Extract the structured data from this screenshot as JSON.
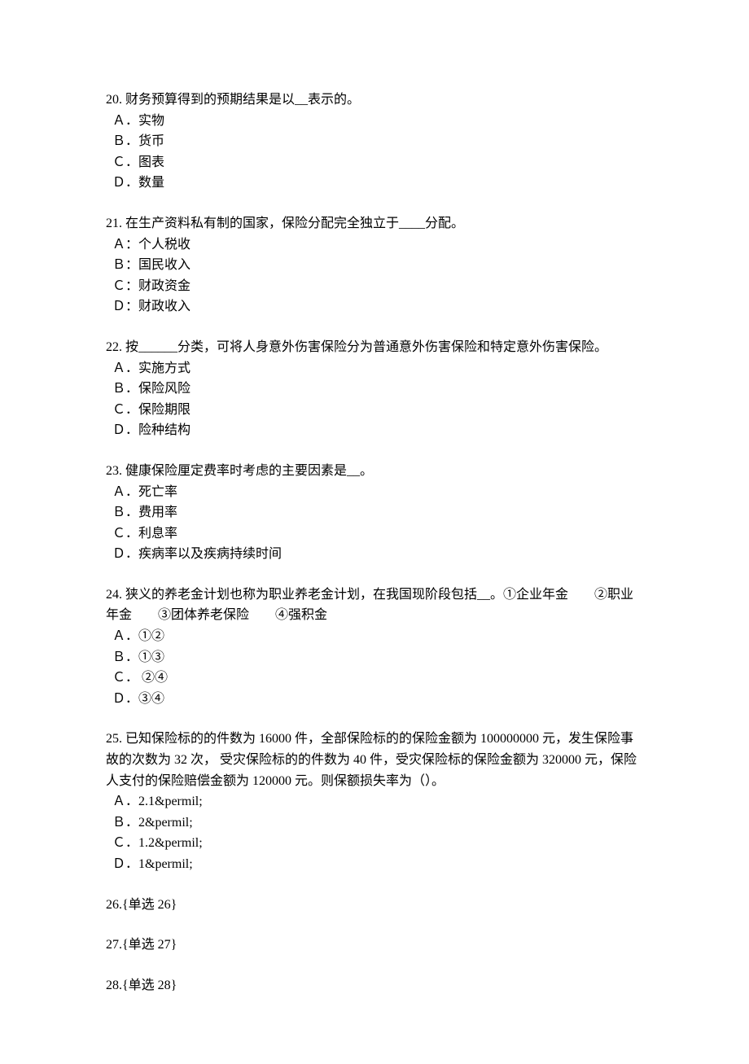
{
  "page": {
    "background_color": "#ffffff",
    "text_color": "#000000",
    "font_family": "SimSun",
    "font_size": 16,
    "line_height": 1.6
  },
  "questions": [
    {
      "number": "20",
      "text": "20. 财务预算得到的预期结果是以__表示的。",
      "options": [
        "Ａ．实物",
        "Ｂ．货币",
        "Ｃ．图表",
        "Ｄ．数量"
      ]
    },
    {
      "number": "21",
      "text": "21. 在生产资料私有制的国家，保险分配完全独立于____分配。",
      "options": [
        "Ａ：个人税收",
        "Ｂ：国民收入",
        "Ｃ：财政资金",
        "Ｄ：财政收入"
      ]
    },
    {
      "number": "22",
      "text": "22. 按______分类，可将人身意外伤害保险分为普通意外伤害保险和特定意外伤害保险。",
      "options": [
        "Ａ．实施方式",
        "Ｂ．保险风险",
        "Ｃ．保险期限",
        "Ｄ．险种结构"
      ]
    },
    {
      "number": "23",
      "text": "23. 健康保险厘定费率时考虑的主要因素是__。",
      "options": [
        "Ａ．死亡率",
        "Ｂ．费用率",
        "Ｃ．利息率",
        "Ｄ．疾病率以及疾病持续时间"
      ]
    },
    {
      "number": "24",
      "text": "24. 狭义的养老金计划也称为职业养老金计划，在我国现阶段包括__。①企业年金　　②职业年金　　③团体养老保险　　④强积金",
      "options": [
        "Ａ．①②",
        "Ｂ．①③",
        "Ｃ． ②④",
        "Ｄ．③④"
      ]
    },
    {
      "number": "25",
      "text": "25. 已知保险标的的件数为 16000 件，全部保险标的的保险金额为 100000000 元，发生保险事故的次数为 32 次， 受灾保险标的的件数为 40 件，受灾保险标的保险金额为 320000 元，保险人支付的保险赔偿金额为 120000 元。则保额损失率为（）。",
      "options": [
        "Ａ．2.1&permil;",
        "Ｂ．2&permil;",
        "Ｃ．1.2&permil;",
        "Ｄ．1&permil;"
      ]
    }
  ],
  "placeholders": [
    {
      "number": "26",
      "text": "26.{单选 26}"
    },
    {
      "number": "27",
      "text": "27.{单选 27}"
    },
    {
      "number": "28",
      "text": "28.{单选 28}"
    }
  ]
}
